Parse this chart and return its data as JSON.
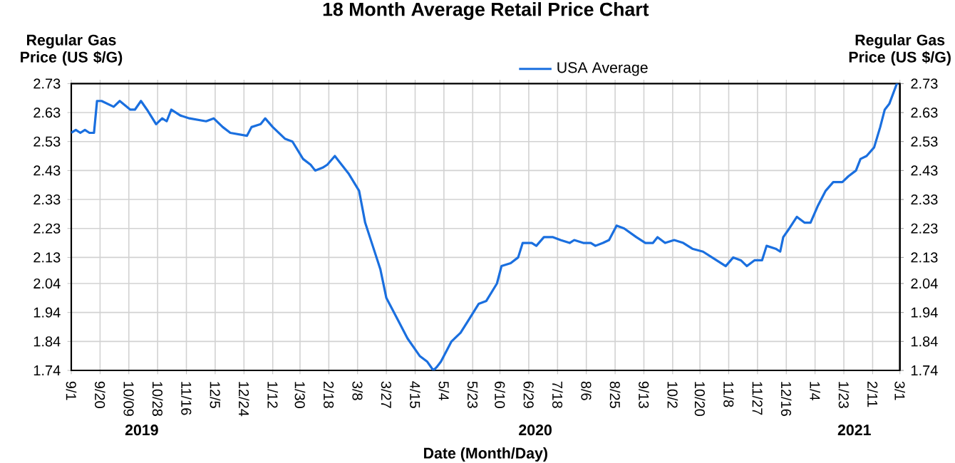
{
  "chart_data": {
    "type": "line",
    "title": "18 Month Average Retail Price Chart",
    "xlabel": "Date (Month/Day)",
    "ylabel": "Regular Gas Price (US $/G)",
    "y2label": "Regular Gas Price (US $/G)",
    "annotations": [
      "2019",
      "2020",
      "2021"
    ],
    "x": [
      "2019-09-01",
      "2019-09-04",
      "2019-09-07",
      "2019-09-10",
      "2019-09-13",
      "2019-09-16",
      "2019-09-18",
      "2019-09-21",
      "2019-09-29",
      "2019-10-03",
      "2019-10-10",
      "2019-10-13",
      "2019-10-17",
      "2019-10-21",
      "2019-10-27",
      "2019-10-31",
      "2019-11-03",
      "2019-11-06",
      "2019-11-12",
      "2019-11-18",
      "2019-11-29",
      "2019-12-04",
      "2019-12-10",
      "2019-12-15",
      "2019-12-26",
      "2019-12-29",
      "2020-01-04",
      "2020-01-07",
      "2020-01-12",
      "2020-01-20",
      "2020-01-25",
      "2020-02-01",
      "2020-02-06",
      "2020-02-09",
      "2020-02-14",
      "2020-02-17",
      "2020-02-22",
      "2020-02-25",
      "2020-03-02",
      "2020-03-09",
      "2020-03-13",
      "2020-03-18",
      "2020-03-23",
      "2020-03-27",
      "2020-04-04",
      "2020-04-10",
      "2020-04-18",
      "2020-04-23",
      "2020-04-27",
      "2020-04-29",
      "2020-05-02",
      "2020-05-09",
      "2020-05-15",
      "2020-05-21",
      "2020-05-27",
      "2020-06-01",
      "2020-06-08",
      "2020-06-11",
      "2020-06-17",
      "2020-06-22",
      "2020-06-25",
      "2020-07-01",
      "2020-07-04",
      "2020-07-09",
      "2020-07-15",
      "2020-07-20",
      "2020-07-26",
      "2020-07-29",
      "2020-08-04",
      "2020-08-09",
      "2020-08-12",
      "2020-08-17",
      "2020-08-21",
      "2020-08-26",
      "2020-08-31",
      "2020-09-08",
      "2020-09-14",
      "2020-09-19",
      "2020-09-22",
      "2020-09-27",
      "2020-10-03",
      "2020-10-09",
      "2020-10-15",
      "2020-10-22",
      "2020-10-28",
      "2020-11-06",
      "2020-11-11",
      "2020-11-16",
      "2020-11-20",
      "2020-11-25",
      "2020-11-30",
      "2020-12-03",
      "2020-12-09",
      "2020-12-12",
      "2020-12-14",
      "2020-12-18",
      "2020-12-23",
      "2020-12-28",
      "2021-01-01",
      "2021-01-06",
      "2021-01-11",
      "2021-01-16",
      "2021-01-22",
      "2021-01-26",
      "2021-01-31",
      "2021-02-03",
      "2021-02-07",
      "2021-02-12",
      "2021-02-16",
      "2021-02-19",
      "2021-02-22",
      "2021-02-27",
      "2021-02-28"
    ],
    "series": [
      {
        "name": "USA Average",
        "color": "#1a6fdf",
        "values": [
          2.56,
          2.57,
          2.56,
          2.57,
          2.56,
          2.56,
          2.67,
          2.67,
          2.65,
          2.67,
          2.64,
          2.64,
          2.67,
          2.64,
          2.59,
          2.61,
          2.6,
          2.64,
          2.62,
          2.61,
          2.6,
          2.61,
          2.58,
          2.56,
          2.55,
          2.58,
          2.59,
          2.61,
          2.58,
          2.54,
          2.53,
          2.47,
          2.45,
          2.43,
          2.44,
          2.45,
          2.48,
          2.46,
          2.42,
          2.36,
          2.25,
          2.17,
          2.09,
          1.99,
          1.91,
          1.85,
          1.79,
          1.77,
          1.74,
          1.75,
          1.77,
          1.84,
          1.87,
          1.92,
          1.97,
          1.98,
          2.04,
          2.1,
          2.11,
          2.13,
          2.18,
          2.18,
          2.17,
          2.2,
          2.2,
          2.19,
          2.18,
          2.19,
          2.18,
          2.18,
          2.17,
          2.18,
          2.19,
          2.24,
          2.23,
          2.2,
          2.18,
          2.18,
          2.2,
          2.18,
          2.19,
          2.18,
          2.16,
          2.15,
          2.13,
          2.1,
          2.13,
          2.12,
          2.1,
          2.12,
          2.12,
          2.17,
          2.16,
          2.15,
          2.2,
          2.23,
          2.27,
          2.25,
          2.25,
          2.31,
          2.36,
          2.39,
          2.39,
          2.41,
          2.43,
          2.47,
          2.48,
          2.51,
          2.58,
          2.64,
          2.66,
          2.73,
          2.73
        ]
      }
    ],
    "xlim": [
      "2019-09-01",
      "2021-03-01"
    ],
    "xticks": [
      {
        "value": "2019-09-01",
        "label": "9/1"
      },
      {
        "value": "2019-09-20",
        "label": "9/20"
      },
      {
        "value": "2019-10-09",
        "label": "10/09"
      },
      {
        "value": "2019-10-28",
        "label": "10/28"
      },
      {
        "value": "2019-11-16",
        "label": "11/16"
      },
      {
        "value": "2019-12-05",
        "label": "12/5"
      },
      {
        "value": "2019-12-24",
        "label": "12/24"
      },
      {
        "value": "2020-01-12",
        "label": "1/12"
      },
      {
        "value": "2020-01-30",
        "label": "1/30"
      },
      {
        "value": "2020-02-18",
        "label": "2/18"
      },
      {
        "value": "2020-03-08",
        "label": "3/8"
      },
      {
        "value": "2020-03-27",
        "label": "3/27"
      },
      {
        "value": "2020-04-15",
        "label": "4/15"
      },
      {
        "value": "2020-05-04",
        "label": "5/4"
      },
      {
        "value": "2020-05-23",
        "label": "5/23"
      },
      {
        "value": "2020-06-10",
        "label": "6/10"
      },
      {
        "value": "2020-06-29",
        "label": "6/29"
      },
      {
        "value": "2020-07-18",
        "label": "7/18"
      },
      {
        "value": "2020-08-06",
        "label": "8/6"
      },
      {
        "value": "2020-08-25",
        "label": "8/25"
      },
      {
        "value": "2020-09-13",
        "label": "9/13"
      },
      {
        "value": "2020-10-02",
        "label": "10/2"
      },
      {
        "value": "2020-10-20",
        "label": "10/20"
      },
      {
        "value": "2020-11-08",
        "label": "11/8"
      },
      {
        "value": "2020-11-27",
        "label": "11/27"
      },
      {
        "value": "2020-12-16",
        "label": "12/16"
      },
      {
        "value": "2021-01-04",
        "label": "1/4"
      },
      {
        "value": "2021-01-23",
        "label": "1/23"
      },
      {
        "value": "2021-02-11",
        "label": "2/11"
      },
      {
        "value": "2021-03-01",
        "label": "3/1"
      }
    ],
    "ylim": [
      1.74,
      2.73
    ],
    "yticks": [
      1.74,
      1.84,
      1.94,
      2.04,
      2.13,
      2.23,
      2.33,
      2.43,
      2.53,
      2.63,
      2.73
    ],
    "y2lim": [
      1.74,
      2.73
    ],
    "y2ticks": [
      1.74,
      1.84,
      1.94,
      2.04,
      2.13,
      2.23,
      2.33,
      2.43,
      2.53,
      2.63,
      2.73
    ],
    "grid": true,
    "legend": "top",
    "marker": "none",
    "line_style": "solid"
  }
}
